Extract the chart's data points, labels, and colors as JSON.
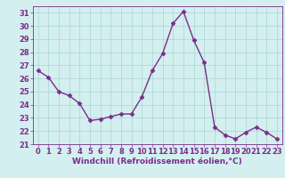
{
  "x": [
    0,
    1,
    2,
    3,
    4,
    5,
    6,
    7,
    8,
    9,
    10,
    11,
    12,
    13,
    14,
    15,
    16,
    17,
    18,
    19,
    20,
    21,
    22,
    23
  ],
  "y": [
    26.6,
    26.1,
    25.0,
    24.7,
    24.1,
    22.8,
    22.9,
    23.1,
    23.3,
    23.3,
    24.6,
    26.6,
    27.9,
    30.2,
    31.1,
    28.9,
    27.2,
    22.3,
    21.7,
    21.4,
    21.9,
    22.3,
    21.9,
    21.4
  ],
  "line_color": "#7b2d8b",
  "marker": "D",
  "marker_size": 2.5,
  "line_width": 1.0,
  "background_color": "#d4efef",
  "grid_color": "#aad4d4",
  "xlabel": "Windchill (Refroidissement éolien,°C)",
  "xlabel_fontsize": 6.5,
  "tick_fontsize": 6.0,
  "ylim": [
    21,
    31.5
  ],
  "xlim": [
    -0.5,
    23.5
  ],
  "yticks": [
    21,
    22,
    23,
    24,
    25,
    26,
    27,
    28,
    29,
    30,
    31
  ],
  "xticks": [
    0,
    1,
    2,
    3,
    4,
    5,
    6,
    7,
    8,
    9,
    10,
    11,
    12,
    13,
    14,
    15,
    16,
    17,
    18,
    19,
    20,
    21,
    22,
    23
  ]
}
